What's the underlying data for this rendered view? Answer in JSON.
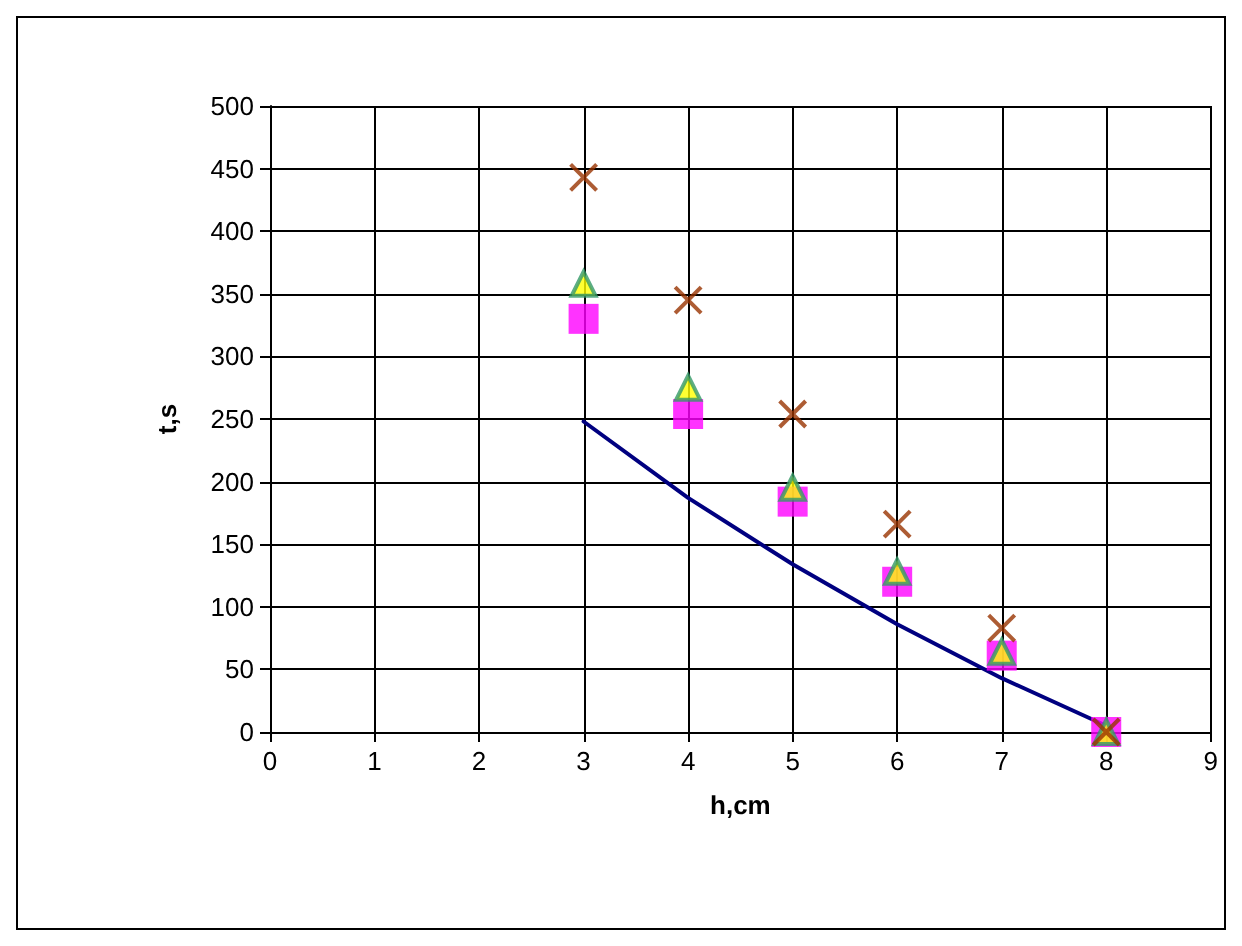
{
  "chart_data": {
    "type": "scatter",
    "xlabel": "h,cm",
    "ylabel": "t,s",
    "xlim": [
      0,
      9
    ],
    "xticks": [
      0,
      1,
      2,
      3,
      4,
      5,
      6,
      7,
      8,
      9
    ],
    "ylim": [
      0,
      500
    ],
    "yticks": [
      0,
      50,
      100,
      150,
      200,
      250,
      300,
      350,
      400,
      450,
      500
    ],
    "grid": true,
    "series": [
      {
        "type": "line",
        "color": "#000080",
        "marker": "none",
        "line_style": "solid",
        "x": [
          3,
          4,
          5,
          6,
          7,
          8
        ],
        "values": [
          248,
          187,
          134,
          86,
          43,
          5
        ]
      },
      {
        "color": "#ff00ff",
        "marker": "square",
        "x": [
          3,
          4,
          5,
          6,
          7,
          8
        ],
        "values": [
          330,
          254,
          184,
          120,
          61,
          0
        ]
      },
      {
        "color": "#ffff00",
        "marker": "triangle",
        "x": [
          3,
          4,
          5,
          6,
          7,
          8
        ],
        "values": [
          358,
          275,
          195,
          128,
          64,
          0
        ]
      },
      {
        "color": "#993300",
        "marker": "cross",
        "x": [
          3,
          4,
          5,
          6,
          7,
          8
        ],
        "values": [
          443,
          345,
          254,
          166,
          83,
          0
        ]
      }
    ]
  }
}
